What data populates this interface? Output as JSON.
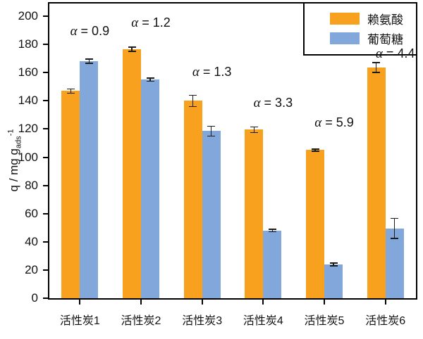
{
  "chart_data": {
    "type": "bar",
    "title": "",
    "ylabel": {
      "prefix": "q / mg g",
      "sub": "ads",
      "sup": "-1"
    },
    "ylim": [
      0,
      209
    ],
    "ytick_step": 20,
    "ytick_labels": [
      "0",
      "20",
      "40",
      "60",
      "80",
      "100",
      "120",
      "140",
      "160",
      "180",
      "200"
    ],
    "grid": false,
    "legend_position": "top-right-inside",
    "categories": [
      "活性炭1",
      "活性炭2",
      "活性炭3",
      "活性炭4",
      "活性炭5",
      "活性炭6"
    ],
    "series": [
      {
        "name": "赖氨酸",
        "color": "#F8A11F",
        "values": [
          147,
          176.5,
          140,
          119.5,
          105,
          163.5
        ],
        "errors": [
          1.5,
          1.5,
          4,
          2,
          0.8,
          3.5
        ]
      },
      {
        "name": "葡萄糖",
        "color": "#82A7DB",
        "values": [
          168,
          155,
          118.5,
          48,
          24,
          49.5
        ],
        "errors": [
          1.5,
          1.2,
          3.5,
          0.8,
          1,
          7
        ]
      }
    ],
    "annotations": [
      {
        "text": "α = 0.9",
        "group": 0,
        "y": 189
      },
      {
        "text": "α = 1.2",
        "group": 1,
        "y": 195
      },
      {
        "text": "α = 1.3",
        "group": 2,
        "y": 160
      },
      {
        "text": "α = 3.3",
        "group": 3,
        "y": 138
      },
      {
        "text": "α = 5.9",
        "group": 4,
        "y": 124
      },
      {
        "text": "α = 4.4",
        "group": 5,
        "y": 173
      }
    ]
  }
}
